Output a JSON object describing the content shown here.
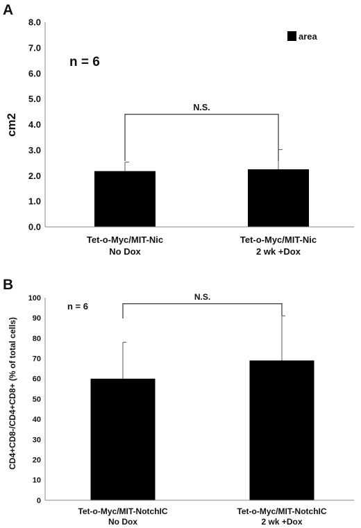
{
  "chart_data": [
    {
      "panel_label": "A",
      "type": "bar",
      "categories": [
        [
          "Tet-o-Myc/MIT-Nic",
          "No Dox"
        ],
        [
          "Tet-o-Myc/MIT-Nic",
          "2 wk +Dox"
        ]
      ],
      "values": [
        2.18,
        2.25
      ],
      "error": [
        0.35,
        0.77
      ],
      "ylabel": "cm2",
      "ylim": [
        0,
        8
      ],
      "yticks": [
        "0.0",
        "1.0",
        "2.0",
        "3.0",
        "4.0",
        "5.0",
        "6.0",
        "7.0",
        "8.0"
      ],
      "legend": {
        "label": "area",
        "position": "top-right"
      },
      "annotation": "n = 6",
      "significance": {
        "label": "N.S.",
        "bracket_y": 4.4,
        "pair": [
          0,
          1
        ]
      },
      "grid": false
    },
    {
      "panel_label": "B",
      "type": "bar",
      "categories": [
        [
          "Tet-o-Myc/MIT-NotchIC",
          "No Dox"
        ],
        [
          "Tet-o-Myc/MIT-NotchIC",
          "2 wk +Dox"
        ]
      ],
      "values": [
        60,
        69
      ],
      "error": [
        18,
        22
      ],
      "ylabel": "CD4+CD8-/CD4+CD8+ (% of total cells)",
      "ylim": [
        0,
        100
      ],
      "yticks": [
        "0",
        "10",
        "20",
        "30",
        "40",
        "50",
        "60",
        "70",
        "80",
        "90",
        "100"
      ],
      "annotation": "n = 6",
      "significance": {
        "label": "N.S.",
        "bracket_y": 97,
        "pair": [
          0,
          1
        ]
      },
      "grid": false
    }
  ]
}
